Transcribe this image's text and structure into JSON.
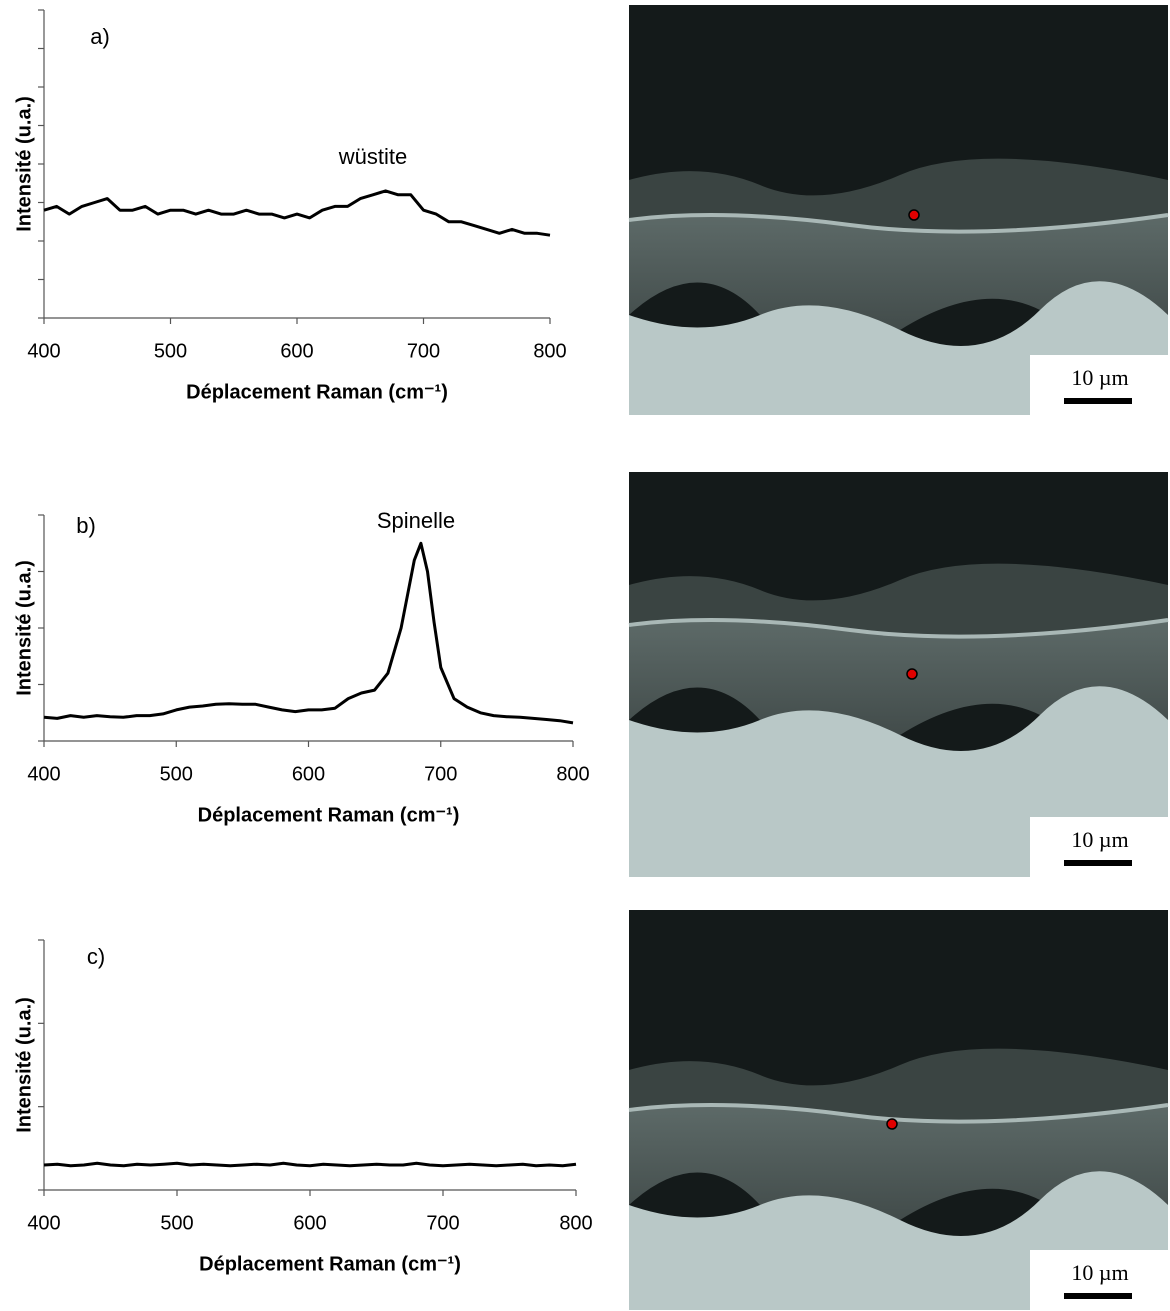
{
  "chart_data": [
    {
      "type": "line",
      "panel_label": "a)",
      "annotation": "wüstite",
      "ylabel": "Intensité (u.a.)",
      "xlabel": "Déplacement Raman (cm⁻¹)",
      "x": [
        400,
        410,
        420,
        430,
        440,
        450,
        460,
        470,
        480,
        490,
        500,
        510,
        520,
        530,
        540,
        550,
        560,
        570,
        580,
        590,
        600,
        610,
        620,
        630,
        640,
        650,
        660,
        670,
        680,
        690,
        700,
        710,
        720,
        730,
        740,
        750,
        760,
        770,
        780,
        790,
        800
      ],
      "values": [
        2.8,
        2.9,
        2.7,
        2.9,
        3.0,
        3.1,
        2.8,
        2.8,
        2.9,
        2.7,
        2.8,
        2.8,
        2.7,
        2.8,
        2.7,
        2.7,
        2.8,
        2.7,
        2.7,
        2.6,
        2.7,
        2.6,
        2.8,
        2.9,
        2.9,
        3.1,
        3.2,
        3.3,
        3.2,
        3.2,
        2.8,
        2.7,
        2.5,
        2.5,
        2.4,
        2.3,
        2.2,
        2.3,
        2.2,
        2.2,
        2.15
      ],
      "color": "#000000",
      "xlim": [
        400,
        800
      ],
      "xticks": [
        400,
        500,
        600,
        700,
        800
      ],
      "ylim": [
        0,
        8
      ],
      "yticks": [
        0,
        1,
        2,
        3,
        4,
        5,
        6,
        7,
        8
      ]
    },
    {
      "type": "line",
      "panel_label": "b)",
      "annotation": "Spinelle",
      "ylabel": "Intensité (u.a.)",
      "xlabel": "Déplacement Raman (cm⁻¹)",
      "x": [
        400,
        410,
        420,
        430,
        440,
        450,
        460,
        470,
        480,
        490,
        500,
        510,
        520,
        530,
        540,
        550,
        560,
        570,
        580,
        590,
        600,
        610,
        620,
        630,
        640,
        650,
        660,
        670,
        675,
        680,
        685,
        690,
        695,
        700,
        710,
        720,
        730,
        740,
        750,
        760,
        770,
        780,
        790,
        800
      ],
      "values": [
        0.42,
        0.4,
        0.45,
        0.42,
        0.45,
        0.43,
        0.42,
        0.45,
        0.45,
        0.48,
        0.55,
        0.6,
        0.62,
        0.65,
        0.66,
        0.65,
        0.65,
        0.6,
        0.55,
        0.52,
        0.55,
        0.55,
        0.58,
        0.75,
        0.85,
        0.9,
        1.2,
        2.0,
        2.6,
        3.2,
        3.5,
        3.0,
        2.1,
        1.3,
        0.75,
        0.6,
        0.5,
        0.45,
        0.43,
        0.42,
        0.4,
        0.38,
        0.36,
        0.32
      ],
      "color": "#000000",
      "xlim": [
        400,
        800
      ],
      "xticks": [
        400,
        500,
        600,
        700,
        800
      ],
      "ylim": [
        0,
        4
      ],
      "yticks": [
        0,
        1,
        2,
        3,
        4
      ]
    },
    {
      "type": "line",
      "panel_label": "c)",
      "ylabel": "Intensité (u.a.)",
      "xlabel": "Déplacement Raman (cm⁻¹)",
      "x": [
        400,
        410,
        420,
        430,
        440,
        450,
        460,
        470,
        480,
        490,
        500,
        510,
        520,
        530,
        540,
        550,
        560,
        570,
        580,
        590,
        600,
        610,
        620,
        630,
        640,
        650,
        660,
        670,
        680,
        690,
        700,
        710,
        720,
        730,
        740,
        750,
        760,
        770,
        780,
        790,
        800
      ],
      "values": [
        0.3,
        0.31,
        0.29,
        0.3,
        0.32,
        0.3,
        0.29,
        0.31,
        0.3,
        0.31,
        0.32,
        0.3,
        0.31,
        0.3,
        0.29,
        0.3,
        0.31,
        0.3,
        0.32,
        0.3,
        0.29,
        0.31,
        0.3,
        0.29,
        0.3,
        0.31,
        0.3,
        0.3,
        0.32,
        0.3,
        0.29,
        0.3,
        0.31,
        0.3,
        0.29,
        0.3,
        0.31,
        0.29,
        0.3,
        0.29,
        0.31
      ],
      "color": "#000000",
      "xlim": [
        400,
        800
      ],
      "xticks": [
        400,
        500,
        600,
        700,
        800
      ],
      "ylim": [
        0,
        3
      ],
      "yticks": [
        0,
        1,
        2,
        3
      ]
    }
  ],
  "images": [
    {
      "scale_bar": "10 µm"
    },
    {
      "scale_bar": "10 µm"
    },
    {
      "scale_bar": "10 µm"
    }
  ]
}
